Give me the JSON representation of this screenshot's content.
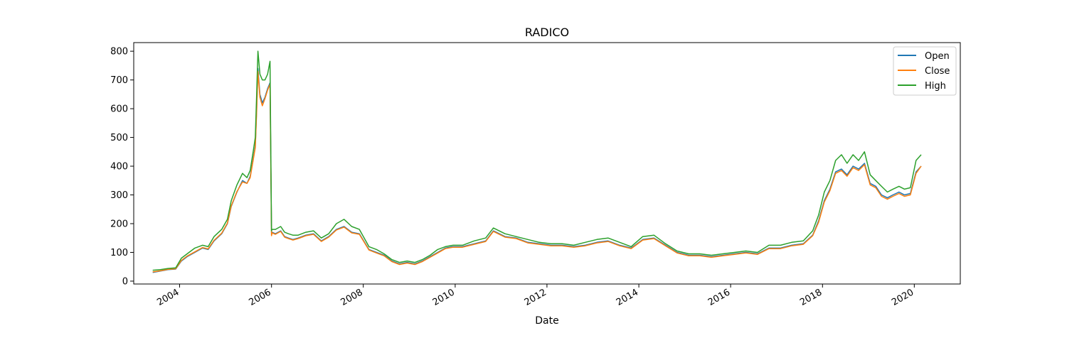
{
  "chart_data": {
    "type": "line",
    "title": "RADICO",
    "xlabel": "Date",
    "ylabel": "",
    "x_axis_type": "date",
    "xlim": [
      "2003-01-01",
      "2021-01-01"
    ],
    "ylim": [
      -10,
      830
    ],
    "x_ticks": [
      "2004",
      "2006",
      "2008",
      "2010",
      "2012",
      "2014",
      "2016",
      "2018",
      "2020"
    ],
    "y_ticks": [
      0,
      100,
      200,
      300,
      400,
      500,
      600,
      700,
      800
    ],
    "grid": false,
    "legend_position": "top-right",
    "colors": {
      "Open": "#1f77b4",
      "Close": "#ff7f0e",
      "High": "#2ca02c"
    },
    "x": [
      "2003-06-01",
      "2003-08-01",
      "2003-10-01",
      "2003-12-01",
      "2004-01-15",
      "2004-03-01",
      "2004-05-01",
      "2004-07-01",
      "2004-08-15",
      "2004-10-01",
      "2004-12-01",
      "2005-01-15",
      "2005-02-15",
      "2005-04-01",
      "2005-05-15",
      "2005-06-20",
      "2005-07-15",
      "2005-08-10",
      "2005-08-25",
      "2005-09-05",
      "2005-09-15",
      "2005-10-01",
      "2005-10-20",
      "2005-11-10",
      "2005-12-01",
      "2005-12-20",
      "2006-01-01",
      "2006-01-05",
      "2006-02-01",
      "2006-03-15",
      "2006-04-15",
      "2006-05-15",
      "2006-06-20",
      "2006-08-01",
      "2006-10-01",
      "2006-12-01",
      "2007-02-01",
      "2007-04-01",
      "2007-06-01",
      "2007-08-01",
      "2007-10-01",
      "2007-12-01",
      "2008-02-15",
      "2008-04-15",
      "2008-06-15",
      "2008-08-15",
      "2008-10-15",
      "2008-12-15",
      "2009-02-15",
      "2009-04-15",
      "2009-06-15",
      "2009-08-15",
      "2009-10-15",
      "2009-12-15",
      "2010-03-01",
      "2010-06-01",
      "2010-09-01",
      "2010-11-01",
      "2011-02-01",
      "2011-05-01",
      "2011-08-01",
      "2011-11-01",
      "2012-02-01",
      "2012-05-01",
      "2012-08-01",
      "2012-11-01",
      "2013-02-01",
      "2013-05-01",
      "2013-08-01",
      "2013-11-01",
      "2014-02-01",
      "2014-05-01",
      "2014-08-01",
      "2014-11-01",
      "2015-02-01",
      "2015-05-01",
      "2015-08-01",
      "2015-11-01",
      "2016-02-01",
      "2016-05-01",
      "2016-08-01",
      "2016-11-01",
      "2017-02-01",
      "2017-05-01",
      "2017-08-01",
      "2017-10-15",
      "2017-12-01",
      "2018-01-15",
      "2018-03-01",
      "2018-04-15",
      "2018-06-01",
      "2018-07-15",
      "2018-09-01",
      "2018-10-15",
      "2018-12-01",
      "2019-01-15",
      "2019-03-01",
      "2019-04-15",
      "2019-06-01",
      "2019-07-15",
      "2019-09-01",
      "2019-10-15",
      "2019-12-01",
      "2020-01-15",
      "2020-02-25"
    ],
    "series": [
      {
        "name": "Open",
        "values": [
          30,
          35,
          40,
          42,
          70,
          85,
          100,
          115,
          110,
          140,
          165,
          200,
          260,
          310,
          350,
          340,
          365,
          430,
          470,
          600,
          740,
          650,
          620,
          640,
          670,
          690,
          160,
          170,
          165,
          175,
          155,
          150,
          145,
          150,
          160,
          165,
          140,
          155,
          180,
          190,
          170,
          165,
          110,
          100,
          90,
          70,
          60,
          65,
          60,
          70,
          85,
          100,
          115,
          120,
          120,
          130,
          140,
          175,
          155,
          150,
          135,
          130,
          125,
          125,
          120,
          125,
          135,
          140,
          125,
          115,
          145,
          150,
          125,
          100,
          90,
          90,
          85,
          90,
          95,
          100,
          95,
          115,
          115,
          125,
          130,
          160,
          210,
          280,
          320,
          380,
          390,
          370,
          400,
          390,
          410,
          340,
          330,
          300,
          290,
          300,
          310,
          300,
          305,
          380,
          400
        ]
      },
      {
        "name": "Close",
        "values": [
          32,
          36,
          41,
          43,
          72,
          87,
          102,
          117,
          112,
          142,
          167,
          202,
          262,
          312,
          345,
          340,
          360,
          425,
          465,
          590,
          730,
          640,
          610,
          635,
          665,
          685,
          158,
          168,
          163,
          173,
          153,
          148,
          143,
          148,
          158,
          163,
          138,
          153,
          178,
          188,
          168,
          163,
          108,
          98,
          88,
          68,
          58,
          63,
          58,
          68,
          83,
          98,
          113,
          118,
          118,
          128,
          138,
          173,
          153,
          148,
          133,
          128,
          123,
          123,
          118,
          123,
          133,
          138,
          123,
          113,
          143,
          148,
          123,
          98,
          88,
          88,
          83,
          88,
          93,
          98,
          93,
          113,
          113,
          123,
          128,
          158,
          205,
          275,
          315,
          375,
          385,
          365,
          395,
          385,
          405,
          335,
          325,
          295,
          285,
          295,
          305,
          295,
          300,
          375,
          400
        ]
      },
      {
        "name": "High",
        "values": [
          38,
          40,
          44,
          46,
          80,
          95,
          115,
          125,
          120,
          155,
          180,
          215,
          280,
          335,
          375,
          360,
          385,
          455,
          500,
          650,
          800,
          720,
          700,
          700,
          720,
          765,
          175,
          180,
          180,
          190,
          170,
          165,
          160,
          160,
          170,
          175,
          150,
          165,
          200,
          215,
          190,
          180,
          120,
          110,
          95,
          75,
          65,
          70,
          65,
          75,
          90,
          110,
          120,
          125,
          125,
          140,
          150,
          185,
          165,
          155,
          145,
          135,
          130,
          130,
          125,
          135,
          145,
          150,
          135,
          120,
          155,
          160,
          130,
          105,
          95,
          95,
          90,
          95,
          100,
          105,
          100,
          125,
          125,
          135,
          140,
          175,
          230,
          310,
          350,
          420,
          440,
          410,
          440,
          420,
          450,
          370,
          350,
          330,
          310,
          320,
          330,
          320,
          325,
          420,
          440
        ]
      }
    ]
  }
}
